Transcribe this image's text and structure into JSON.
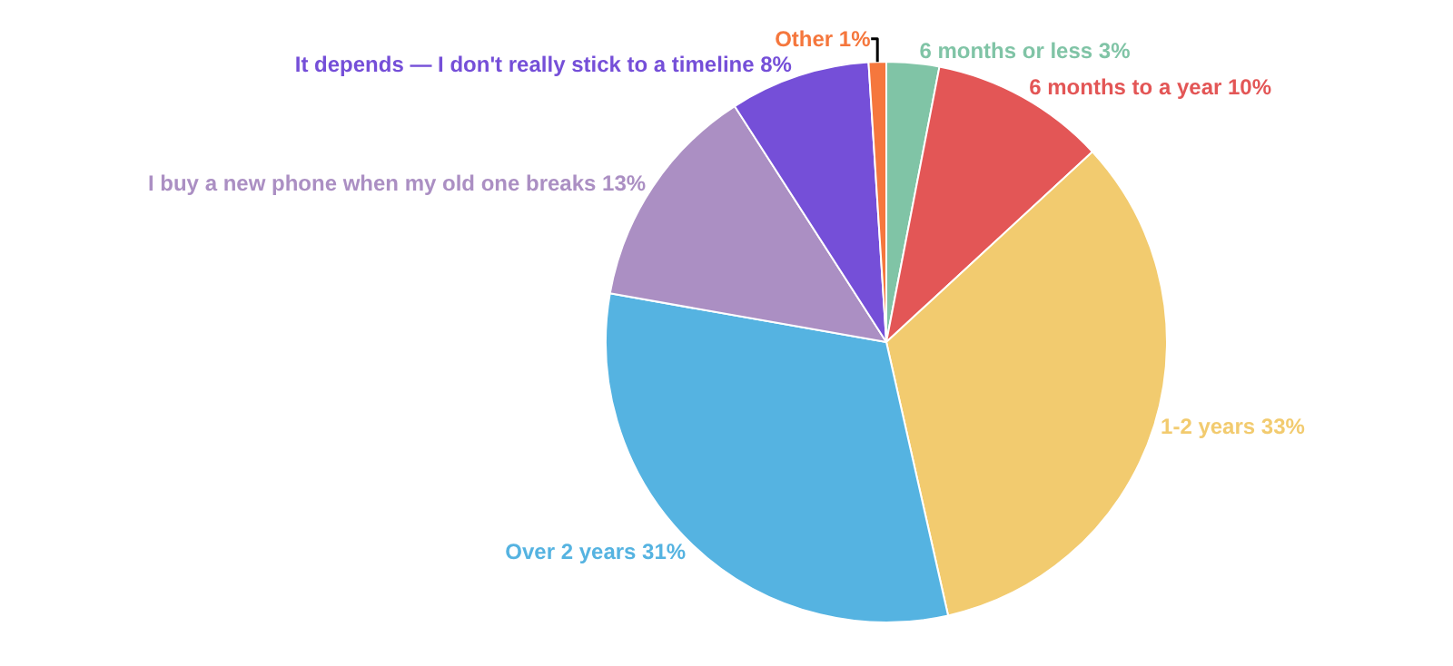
{
  "chart_data": {
    "type": "pie",
    "categories": [
      "6 months or less",
      "6 months to a year",
      "1-2 years",
      "Over 2 years",
      "I buy a new phone when my old one breaks",
      "It depends — I don't really stick to a timeline",
      "Other"
    ],
    "values": [
      3,
      10,
      33,
      31,
      13,
      8,
      1
    ],
    "value_labels": [
      "3%",
      "10%",
      "33%",
      "31%",
      "13%",
      "8%",
      "1%"
    ],
    "colors": [
      "#80c4a6",
      "#e35656",
      "#f2cb6f",
      "#55b3e1",
      "#ab8fc3",
      "#754fd8",
      "#f5773d"
    ],
    "legend": false
  }
}
